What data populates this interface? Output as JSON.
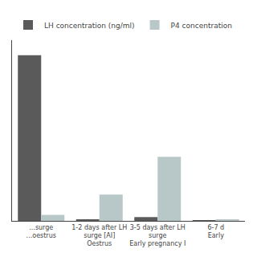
{
  "chart_data": {
    "type": "bar",
    "categories": [
      "...surge\n...oestrus",
      "1-2 days after LH\nsurge [AI]\nOestrus",
      "3-5 days after LH\nsurge\nEarly pregnancy I",
      "6-7 d\nEarly"
    ],
    "series": [
      {
        "name": "LH concentration (ng/ml)",
        "color": "#5a5a5a",
        "values": [
          22.0,
          0.2,
          0.5,
          0.1
        ]
      },
      {
        "name": "P4 concentration",
        "color": "#b8c8c8",
        "values": [
          0.8,
          3.5,
          8.5,
          0.2
        ]
      }
    ],
    "ylim": [
      0,
      24
    ],
    "grid": false,
    "legend": "upper left",
    "tick_labels": "x"
  }
}
